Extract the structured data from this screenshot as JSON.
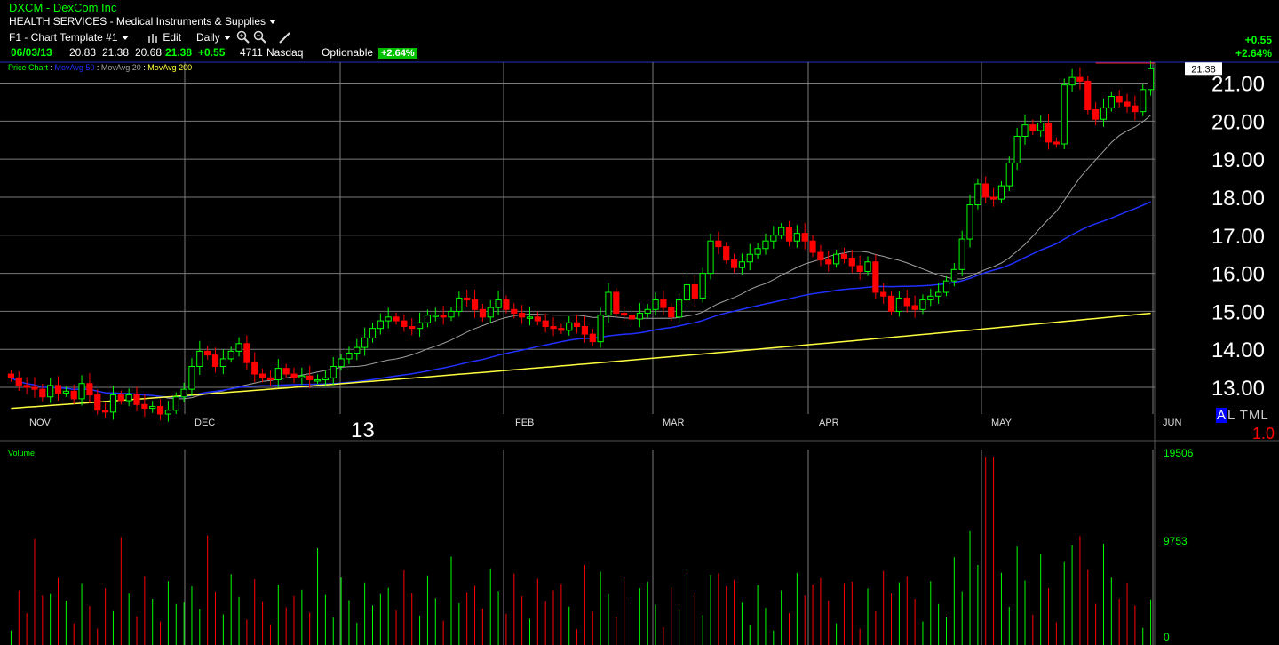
{
  "header": {
    "symbol_line": "DXCM - DexCom Inc",
    "sector_line": "HEALTH SERVICES - Medical Instruments & Supplies",
    "template": "F1 - Chart Template #1",
    "edit": "Edit",
    "period": "Daily",
    "zoom_in_icon": "zoom-in-icon",
    "zoom_out_icon": "zoom-out-icon",
    "draw_icon": "pencil-icon",
    "chart_type_icon": "bars-icon"
  },
  "quote": {
    "date": "06/03/13",
    "open": "20.83",
    "high": "21.38",
    "low": "20.68",
    "close": "21.38",
    "change": "+0.55",
    "volume": "4711",
    "exchange": "Nasdaq",
    "optionable": "Optionable",
    "pct": "+2.64%"
  },
  "side": {
    "change": "+0.55",
    "pct": "+2.64%"
  },
  "legend": {
    "price": "Price Chart",
    "ma50": "MovAvg 50",
    "ma20": "MovAvg 20",
    "ma200": "MovAvg 200",
    "sep": " : "
  },
  "modes": {
    "a": "A",
    "rest": "L TML"
  },
  "scale_ratio": "1.0",
  "colors": {
    "up": "#00ff00",
    "down": "#ff0000",
    "ma50": "#2030ff",
    "ma20": "#a0a0a0",
    "ma200": "#ffff40",
    "grid": "#7a7a7a"
  },
  "chart_data": {
    "type": "candlestick",
    "symbol": "DXCM",
    "price_axis": {
      "ticks": [
        "13.00",
        "14.00",
        "15.00",
        "16.00",
        "17.00",
        "18.00",
        "19.00",
        "20.00",
        "21.00"
      ],
      "range": [
        12.3,
        21.55
      ],
      "last_price_label": "21.38"
    },
    "month_labels": [
      "NOV",
      "DEC",
      "13",
      "FEB",
      "MAR",
      "APR",
      "MAY",
      "JUN"
    ],
    "volume_axis": {
      "label": "Volume",
      "ticks": [
        "19506",
        "9753",
        "0"
      ],
      "max": 19506
    },
    "closes": [
      13.25,
      13.05,
      13.0,
      12.95,
      12.75,
      13.05,
      12.85,
      12.9,
      12.7,
      13.1,
      12.8,
      12.4,
      12.35,
      12.8,
      12.65,
      12.8,
      12.55,
      12.45,
      12.5,
      12.3,
      12.4,
      12.75,
      12.95,
      13.55,
      13.95,
      13.85,
      13.55,
      13.75,
      13.95,
      14.15,
      13.65,
      13.35,
      13.25,
      13.2,
      13.5,
      13.35,
      13.25,
      13.3,
      13.2,
      13.2,
      13.25,
      13.55,
      13.75,
      13.9,
      14.05,
      14.3,
      14.55,
      14.75,
      14.85,
      14.75,
      14.6,
      14.55,
      14.7,
      14.9,
      14.9,
      14.85,
      15.0,
      15.35,
      15.3,
      15.05,
      14.85,
      15.1,
      15.3,
      15.05,
      14.95,
      14.85,
      14.85,
      14.75,
      14.6,
      14.55,
      14.5,
      14.7,
      14.6,
      14.4,
      14.2,
      14.9,
      15.5,
      14.95,
      14.9,
      14.8,
      14.95,
      15.05,
      15.3,
      15.1,
      14.85,
      15.3,
      15.7,
      15.35,
      16.0,
      16.85,
      16.7,
      16.35,
      16.15,
      16.3,
      16.5,
      16.65,
      16.85,
      17.0,
      17.2,
      16.85,
      17.05,
      16.85,
      16.55,
      16.35,
      16.25,
      16.5,
      16.4,
      16.2,
      16.05,
      16.3,
      15.5,
      15.4,
      15.0,
      15.35,
      15.15,
      15.05,
      15.3,
      15.4,
      15.5,
      15.8,
      16.1,
      16.9,
      17.8,
      18.35,
      18.0,
      17.95,
      18.3,
      18.9,
      19.6,
      19.9,
      19.75,
      19.95,
      19.45,
      19.4,
      20.95,
      21.15,
      21.05,
      20.3,
      20.05,
      20.35,
      20.65,
      20.5,
      20.4,
      20.25,
      20.83,
      21.38
    ],
    "ma_series": [
      "MovAvg 20",
      "MovAvg 50",
      "MovAvg 200"
    ],
    "volume_peak_index": 124
  }
}
